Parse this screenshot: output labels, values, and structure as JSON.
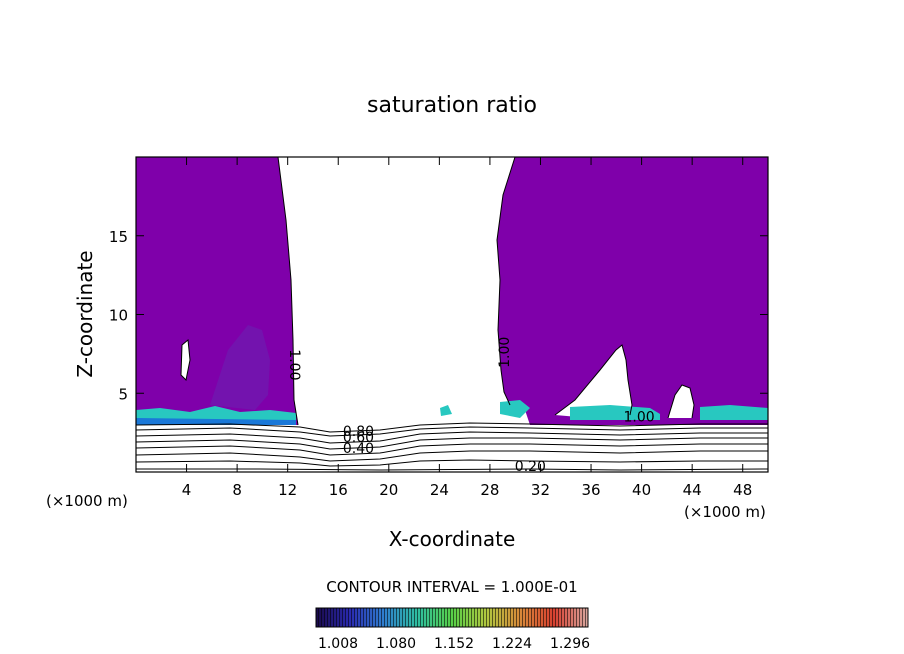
{
  "chart_data": {
    "type": "contour",
    "title": "saturation ratio",
    "xlabel": "X-coordinate",
    "ylabel": "Z-coordinate",
    "x_unit": "(×1000 m)",
    "x_unit_right": "(×1000 m)",
    "xlim": [
      0,
      50
    ],
    "ylim": [
      0,
      20
    ],
    "x_ticks": [
      4,
      8,
      12,
      16,
      20,
      24,
      28,
      32,
      36,
      40,
      44,
      48
    ],
    "y_ticks": [
      5,
      10,
      15
    ],
    "contour_interval_text": "CONTOUR INTERVAL = 1.000E-01",
    "colorbar": {
      "tick_labels": [
        "1.008",
        "1.080",
        "1.152",
        "1.224",
        "1.296"
      ],
      "min": 1.008,
      "max": 1.296,
      "colors": [
        "#1a0a4a",
        "#2a2ab0",
        "#2f7fd0",
        "#2fc0a0",
        "#58d048",
        "#b0c840",
        "#d88a3a",
        "#d84030",
        "#d8a8a0"
      ]
    },
    "fill_color": "#7f00aa",
    "contour_labels": [
      {
        "text": "1.00",
        "x": 12.2,
        "z": 6.8,
        "rotate": 90
      },
      {
        "text": "1.00",
        "x": 29.5,
        "z": 7.6,
        "rotate": -90
      },
      {
        "text": "1.00",
        "x": 39.8,
        "z": 3.2,
        "rotate": 0
      },
      {
        "text": "0.80",
        "x": 17.6,
        "z": 2.3,
        "rotate": 0
      },
      {
        "text": "0.60",
        "x": 17.6,
        "z": 1.9,
        "rotate": 0
      },
      {
        "text": "0.40",
        "x": 17.6,
        "z": 1.2,
        "rotate": 0
      },
      {
        "text": "0.20",
        "x": 31.2,
        "z": 0.05,
        "rotate": 0
      }
    ]
  }
}
